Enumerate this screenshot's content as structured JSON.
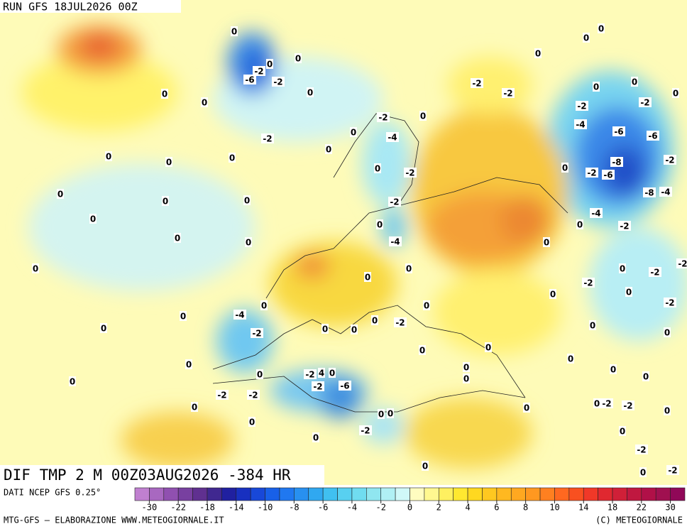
{
  "header": {
    "run": "RUN GFS 18JUL2026 00Z"
  },
  "map": {
    "title": "DIF TMP 2 M 00Z03AUG2026 -384 HR",
    "contour_labels": [
      0,
      0,
      -2,
      -6,
      -2,
      0,
      0,
      0,
      0,
      -2,
      0,
      0,
      0,
      0,
      0,
      0,
      0,
      0,
      0,
      0,
      0,
      0,
      0,
      0,
      0,
      0,
      0,
      0,
      -4,
      -2,
      0,
      0,
      -2,
      -2,
      -2,
      4,
      0,
      -2,
      -6,
      0,
      0,
      -2,
      0,
      -2,
      0,
      -4,
      0,
      -2,
      -2,
      0,
      -4,
      0,
      0,
      0,
      -2,
      0,
      0,
      0,
      0,
      0,
      0,
      0,
      0,
      0,
      0,
      0,
      -2,
      -2,
      0,
      0,
      0,
      0,
      0,
      -2,
      -2,
      0,
      -4,
      -6,
      -6,
      -8,
      -2,
      -6,
      0,
      -2,
      -8,
      -4,
      -4,
      0,
      -2,
      -2,
      0,
      -2,
      -2,
      0,
      -2,
      0,
      0,
      0,
      0,
      0,
      0,
      -2,
      -2,
      0,
      0,
      -2,
      0,
      -2
    ]
  },
  "colorbar": {
    "source": "DATI NCEP GFS 0.25°",
    "colors": [
      "#c080d0",
      "#a868c0",
      "#9050b0",
      "#7840a0",
      "#603090",
      "#402890",
      "#2020a0",
      "#1830c0",
      "#1848d8",
      "#1860e8",
      "#2078f0",
      "#2890f0",
      "#30a8f0",
      "#40c0f0",
      "#58d0f0",
      "#70dcf0",
      "#90e6f0",
      "#b0f0f4",
      "#d0f8f8",
      "#fffcc0",
      "#fff890",
      "#fff060",
      "#ffe830",
      "#ffd820",
      "#ffc820",
      "#ffb820",
      "#ffa820",
      "#ff9820",
      "#ff8020",
      "#ff6820",
      "#f85020",
      "#f03828",
      "#e02830",
      "#d02038",
      "#c01840",
      "#b01048",
      "#a01050",
      "#900858"
    ],
    "labels": [
      -30,
      -22,
      -18,
      -14,
      -10,
      -8,
      -6,
      -4,
      -2,
      0,
      2,
      4,
      6,
      8,
      10,
      14,
      18,
      22,
      30
    ]
  },
  "footer": {
    "left": "MTG-GFS — ELABORAZIONE WWW.METEOGIORNALE.IT",
    "right": "(C) METEOGIORNALE"
  }
}
